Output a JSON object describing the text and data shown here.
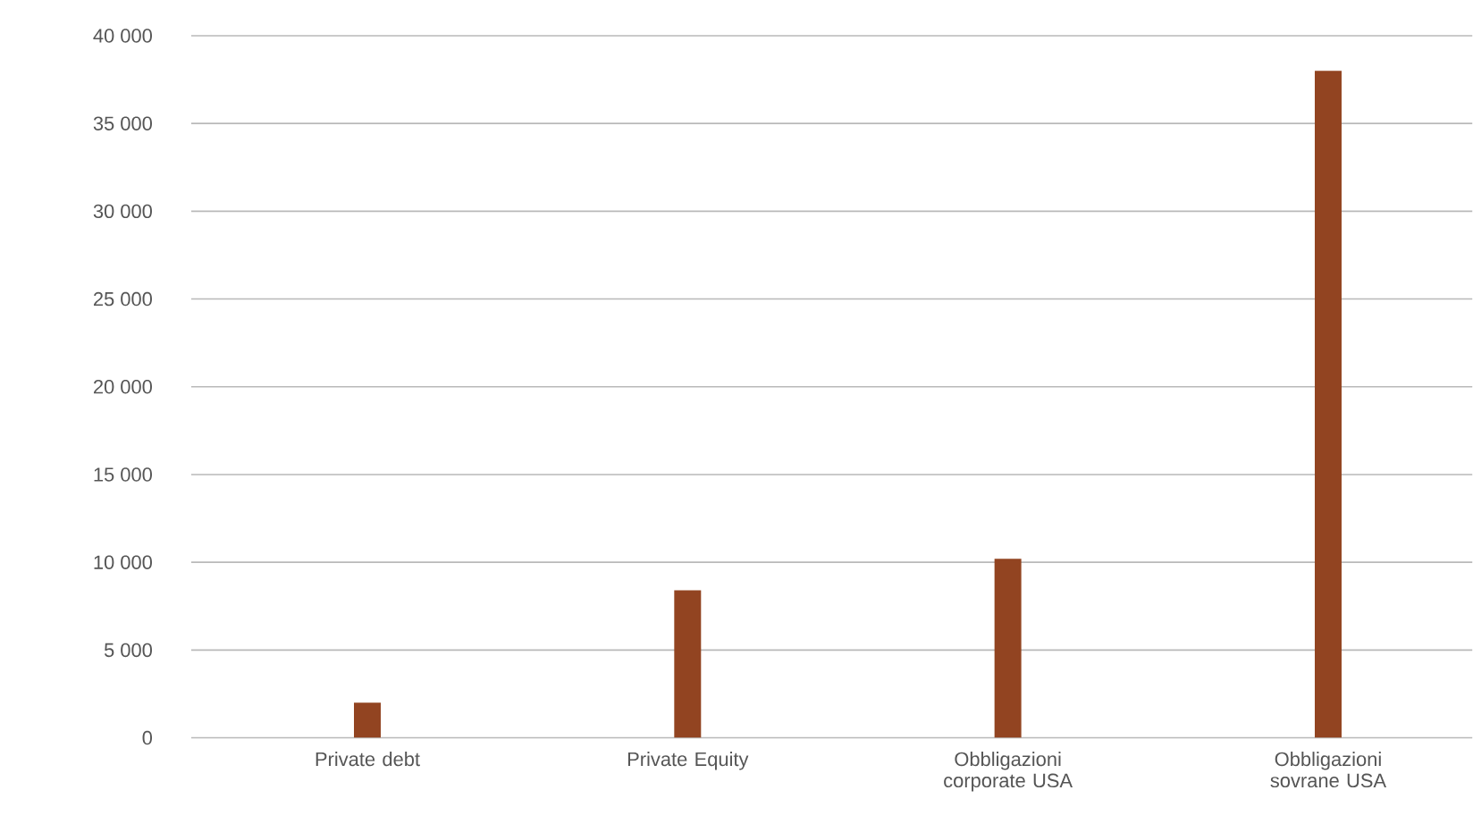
{
  "chart_data": {
    "type": "bar",
    "categories": [
      "Private debt",
      "Private Equity",
      "Obbligazioni corporate USA",
      "Obbligazioni sovrane USA"
    ],
    "values": [
      2000,
      8400,
      10200,
      38000
    ],
    "color": "#924421",
    "ylim": [
      0,
      40000
    ],
    "yticks": [
      {
        "value": 0,
        "label": "0"
      },
      {
        "value": 5000,
        "label": "5 000"
      },
      {
        "value": 10000,
        "label": "10 000"
      },
      {
        "value": 15000,
        "label": "15 000"
      },
      {
        "value": 20000,
        "label": "20 000"
      },
      {
        "value": 25000,
        "label": "25 000"
      },
      {
        "value": 30000,
        "label": "30 000"
      },
      {
        "value": 35000,
        "label": "35 000"
      },
      {
        "value": 40000,
        "label": "40 000"
      }
    ],
    "grid": "y"
  }
}
